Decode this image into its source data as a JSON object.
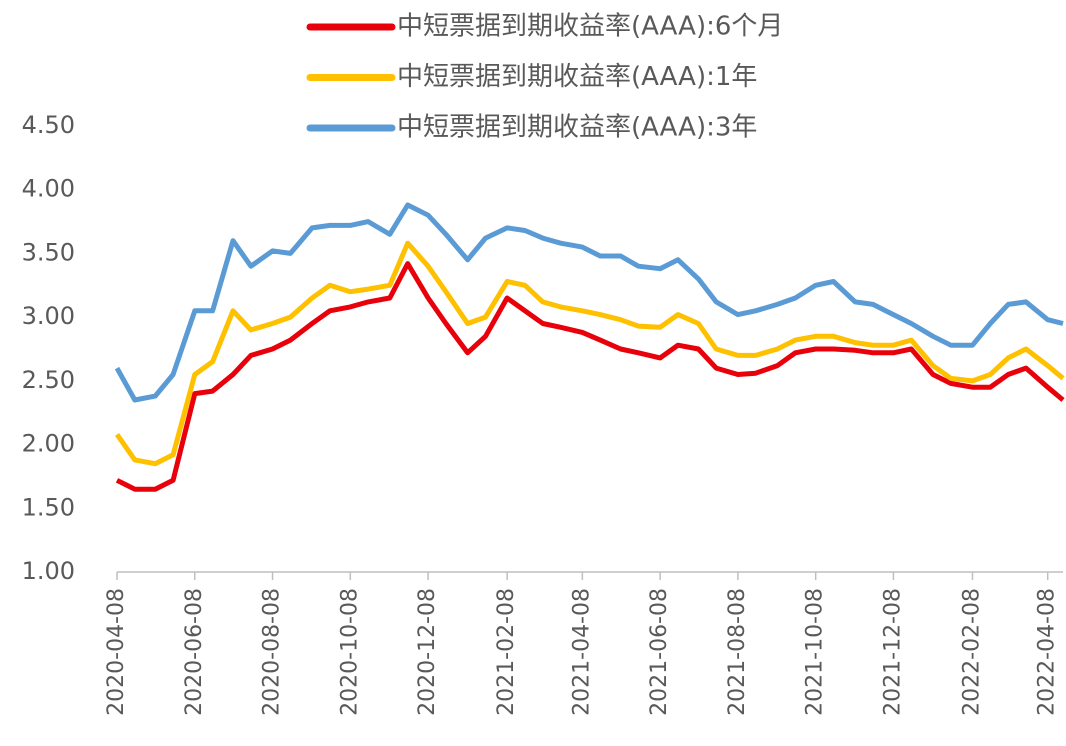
{
  "chart_data": {
    "type": "line",
    "x": [
      "2020-04-08",
      "2020-04-22",
      "2020-05-08",
      "2020-05-22",
      "2020-06-08",
      "2020-06-22",
      "2020-07-08",
      "2020-07-22",
      "2020-08-08",
      "2020-08-22",
      "2020-09-08",
      "2020-09-22",
      "2020-10-08",
      "2020-10-22",
      "2020-11-08",
      "2020-11-22",
      "2020-12-08",
      "2020-12-22",
      "2021-01-08",
      "2021-01-22",
      "2021-02-08",
      "2021-02-22",
      "2021-03-08",
      "2021-03-22",
      "2021-04-08",
      "2021-04-22",
      "2021-05-08",
      "2021-05-22",
      "2021-06-08",
      "2021-06-22",
      "2021-07-08",
      "2021-07-22",
      "2021-08-08",
      "2021-08-22",
      "2021-09-08",
      "2021-09-22",
      "2021-10-08",
      "2021-10-22",
      "2021-11-08",
      "2021-11-22",
      "2021-12-08",
      "2021-12-22",
      "2022-01-08",
      "2022-01-22",
      "2022-02-08",
      "2022-02-22",
      "2022-03-08",
      "2022-03-22",
      "2022-04-08",
      "2022-04-20"
    ],
    "series": [
      {
        "name": "中短票据到期收益率(AAA):6个月",
        "color": "#e8000b",
        "values": [
          1.72,
          1.65,
          1.65,
          1.72,
          2.4,
          2.42,
          2.55,
          2.7,
          2.75,
          2.82,
          2.95,
          3.05,
          3.08,
          3.12,
          3.15,
          3.42,
          3.15,
          2.95,
          2.72,
          2.85,
          3.15,
          3.05,
          2.95,
          2.92,
          2.88,
          2.82,
          2.75,
          2.72,
          2.68,
          2.78,
          2.75,
          2.6,
          2.55,
          2.56,
          2.62,
          2.72,
          2.75,
          2.75,
          2.74,
          2.72,
          2.72,
          2.75,
          2.55,
          2.48,
          2.45,
          2.45,
          2.55,
          2.6,
          2.45,
          2.35
        ]
      },
      {
        "name": "中短票据到期收益率(AAA):1年",
        "color": "#ffc000",
        "values": [
          2.08,
          1.88,
          1.85,
          1.92,
          2.55,
          2.65,
          3.05,
          2.9,
          2.95,
          3.0,
          3.15,
          3.25,
          3.2,
          3.22,
          3.25,
          3.58,
          3.4,
          3.2,
          2.95,
          3.0,
          3.28,
          3.25,
          3.12,
          3.08,
          3.05,
          3.02,
          2.98,
          2.93,
          2.92,
          3.02,
          2.95,
          2.75,
          2.7,
          2.7,
          2.75,
          2.82,
          2.85,
          2.85,
          2.8,
          2.78,
          2.78,
          2.82,
          2.62,
          2.52,
          2.5,
          2.55,
          2.68,
          2.75,
          2.62,
          2.52
        ]
      },
      {
        "name": "中短票据到期收益率(AAA):3年",
        "color": "#5b9bd5",
        "values": [
          2.6,
          2.35,
          2.38,
          2.55,
          3.05,
          3.05,
          3.6,
          3.4,
          3.52,
          3.5,
          3.7,
          3.72,
          3.72,
          3.75,
          3.65,
          3.88,
          3.8,
          3.65,
          3.45,
          3.62,
          3.7,
          3.68,
          3.62,
          3.58,
          3.55,
          3.48,
          3.48,
          3.4,
          3.38,
          3.45,
          3.3,
          3.12,
          3.02,
          3.05,
          3.1,
          3.15,
          3.25,
          3.28,
          3.12,
          3.1,
          3.02,
          2.95,
          2.85,
          2.78,
          2.78,
          2.95,
          3.1,
          3.12,
          2.98,
          2.95
        ]
      }
    ],
    "xlim": [
      "2020-04-08",
      "2022-04-20"
    ],
    "xticks": [
      "2020-04-08",
      "2020-06-08",
      "2020-08-08",
      "2020-10-08",
      "2020-12-08",
      "2021-02-08",
      "2021-04-08",
      "2021-06-08",
      "2021-08-08",
      "2021-10-08",
      "2021-12-08",
      "2022-02-08",
      "2022-04-08"
    ],
    "ylim": [
      1,
      4.5
    ],
    "yticks": [
      {
        "value": 1,
        "label": "1.00"
      },
      {
        "value": 1.5,
        "label": "1.50"
      },
      {
        "value": 2,
        "label": "2.00"
      },
      {
        "value": 2.5,
        "label": "2.50"
      },
      {
        "value": 3,
        "label": "3.00"
      },
      {
        "value": 3.5,
        "label": "3.50"
      },
      {
        "value": 4,
        "label": "4.00"
      },
      {
        "value": 4.5,
        "label": "4.50"
      }
    ],
    "grid": false,
    "legend": "top"
  }
}
